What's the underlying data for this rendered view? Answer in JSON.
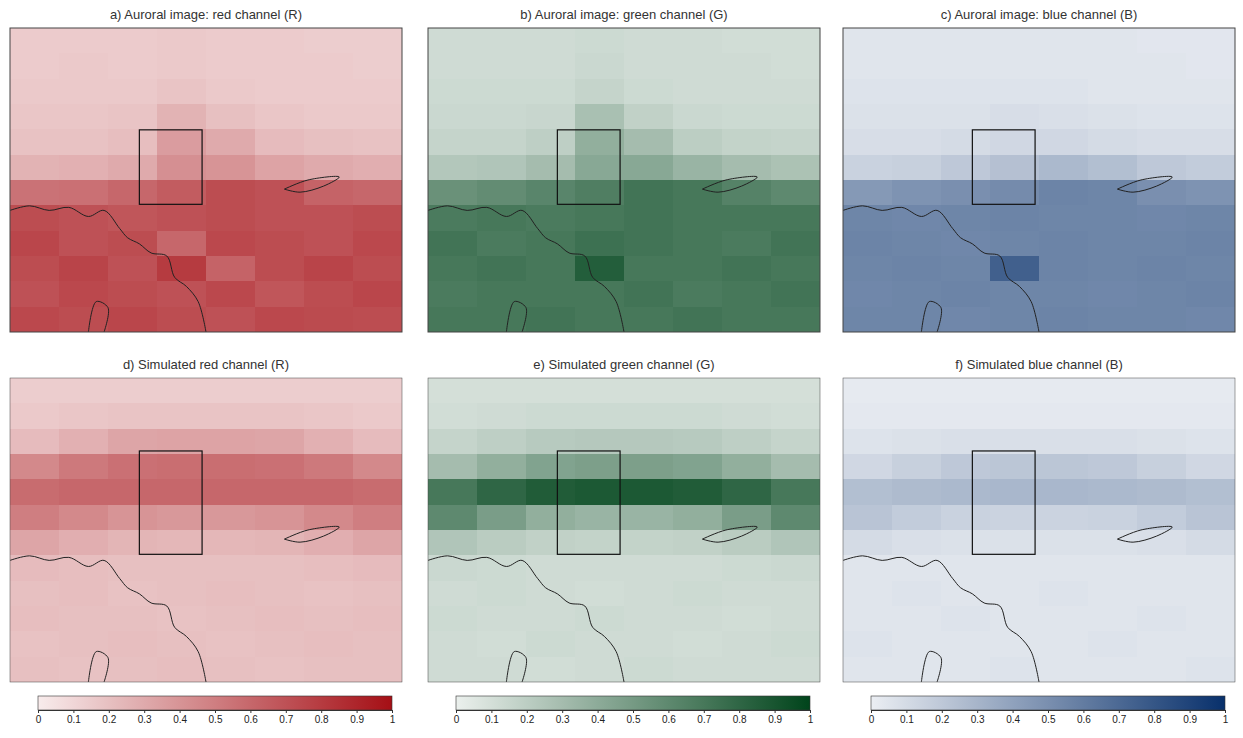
{
  "chart_data": [
    {
      "type": "heatmap",
      "title": "a) Auroral image: red channel (R)",
      "color": "#a50f15",
      "tick_labels": false,
      "zlim": [
        0,
        1
      ],
      "cells": [
        [
          0.15,
          0.15,
          0.15,
          0.16,
          0.15,
          0.15,
          0.14,
          0.14
        ],
        [
          0.15,
          0.16,
          0.15,
          0.16,
          0.15,
          0.15,
          0.15,
          0.14
        ],
        [
          0.16,
          0.16,
          0.16,
          0.18,
          0.16,
          0.15,
          0.15,
          0.15
        ],
        [
          0.17,
          0.17,
          0.18,
          0.26,
          0.2,
          0.17,
          0.16,
          0.16
        ],
        [
          0.19,
          0.19,
          0.21,
          0.36,
          0.3,
          0.22,
          0.2,
          0.19
        ],
        [
          0.26,
          0.27,
          0.3,
          0.42,
          0.4,
          0.33,
          0.3,
          0.28
        ],
        [
          0.55,
          0.56,
          0.6,
          0.65,
          0.72,
          0.7,
          0.62,
          0.6
        ],
        [
          0.72,
          0.7,
          0.68,
          0.7,
          0.72,
          0.7,
          0.7,
          0.72
        ],
        [
          0.75,
          0.7,
          0.72,
          0.6,
          0.74,
          0.72,
          0.7,
          0.74
        ],
        [
          0.72,
          0.76,
          0.7,
          0.8,
          0.62,
          0.72,
          0.76,
          0.72
        ],
        [
          0.7,
          0.74,
          0.72,
          0.7,
          0.74,
          0.68,
          0.72,
          0.75
        ],
        [
          0.74,
          0.72,
          0.75,
          0.72,
          0.7,
          0.74,
          0.73,
          0.72
        ]
      ]
    },
    {
      "type": "heatmap",
      "title": "b) Auroral image: green channel (G)",
      "color": "#00441b",
      "tick_labels": false,
      "zlim": [
        0,
        1
      ],
      "cells": [
        [
          0.12,
          0.12,
          0.12,
          0.13,
          0.12,
          0.12,
          0.11,
          0.11
        ],
        [
          0.12,
          0.12,
          0.12,
          0.14,
          0.12,
          0.12,
          0.12,
          0.11
        ],
        [
          0.13,
          0.13,
          0.13,
          0.16,
          0.13,
          0.12,
          0.12,
          0.12
        ],
        [
          0.14,
          0.14,
          0.15,
          0.28,
          0.18,
          0.14,
          0.13,
          0.13
        ],
        [
          0.16,
          0.16,
          0.19,
          0.38,
          0.3,
          0.2,
          0.17,
          0.16
        ],
        [
          0.24,
          0.25,
          0.3,
          0.42,
          0.42,
          0.35,
          0.3,
          0.27
        ],
        [
          0.55,
          0.58,
          0.62,
          0.66,
          0.72,
          0.7,
          0.64,
          0.6
        ],
        [
          0.68,
          0.7,
          0.68,
          0.7,
          0.72,
          0.7,
          0.7,
          0.7
        ],
        [
          0.72,
          0.68,
          0.7,
          0.74,
          0.72,
          0.7,
          0.68,
          0.72
        ],
        [
          0.7,
          0.72,
          0.7,
          0.85,
          0.7,
          0.7,
          0.72,
          0.7
        ],
        [
          0.68,
          0.7,
          0.7,
          0.7,
          0.72,
          0.68,
          0.7,
          0.72
        ],
        [
          0.7,
          0.7,
          0.72,
          0.7,
          0.7,
          0.72,
          0.7,
          0.7
        ]
      ]
    },
    {
      "type": "heatmap",
      "title": "c) Auroral image: blue channel (B)",
      "color": "#08306b",
      "tick_labels": false,
      "zlim": [
        0,
        1
      ],
      "cells": [
        [
          0.05,
          0.05,
          0.05,
          0.05,
          0.05,
          0.05,
          0.04,
          0.04
        ],
        [
          0.05,
          0.05,
          0.05,
          0.05,
          0.05,
          0.05,
          0.05,
          0.04
        ],
        [
          0.06,
          0.06,
          0.06,
          0.06,
          0.06,
          0.05,
          0.05,
          0.05
        ],
        [
          0.07,
          0.07,
          0.07,
          0.09,
          0.08,
          0.07,
          0.06,
          0.06
        ],
        [
          0.09,
          0.09,
          0.1,
          0.12,
          0.12,
          0.1,
          0.09,
          0.09
        ],
        [
          0.15,
          0.16,
          0.2,
          0.24,
          0.28,
          0.25,
          0.2,
          0.18
        ],
        [
          0.45,
          0.48,
          0.5,
          0.52,
          0.56,
          0.55,
          0.5,
          0.48
        ],
        [
          0.55,
          0.54,
          0.55,
          0.56,
          0.55,
          0.55,
          0.54,
          0.55
        ],
        [
          0.56,
          0.55,
          0.54,
          0.55,
          0.56,
          0.55,
          0.55,
          0.56
        ],
        [
          0.55,
          0.56,
          0.55,
          0.75,
          0.56,
          0.55,
          0.56,
          0.55
        ],
        [
          0.54,
          0.55,
          0.56,
          0.55,
          0.55,
          0.54,
          0.55,
          0.56
        ],
        [
          0.55,
          0.55,
          0.54,
          0.55,
          0.56,
          0.55,
          0.55,
          0.54
        ]
      ]
    },
    {
      "type": "heatmap",
      "title": "d) Simulated red channel (R)",
      "color": "#a50f15",
      "tick_labels": false,
      "zlim": [
        0,
        1
      ],
      "zticks": [
        0,
        0.1,
        0.2,
        0.3,
        0.4,
        0.5,
        0.6,
        0.7,
        0.8,
        0.9,
        1
      ],
      "cells": [
        [
          0.14,
          0.14,
          0.14,
          0.14,
          0.14,
          0.14,
          0.14,
          0.14
        ],
        [
          0.16,
          0.17,
          0.18,
          0.18,
          0.18,
          0.18,
          0.17,
          0.16
        ],
        [
          0.22,
          0.27,
          0.32,
          0.33,
          0.33,
          0.32,
          0.27,
          0.22
        ],
        [
          0.45,
          0.52,
          0.56,
          0.57,
          0.57,
          0.56,
          0.52,
          0.45
        ],
        [
          0.58,
          0.6,
          0.6,
          0.6,
          0.6,
          0.6,
          0.6,
          0.58
        ],
        [
          0.5,
          0.45,
          0.4,
          0.38,
          0.38,
          0.4,
          0.45,
          0.5
        ],
        [
          0.32,
          0.28,
          0.25,
          0.24,
          0.24,
          0.25,
          0.28,
          0.32
        ],
        [
          0.22,
          0.21,
          0.2,
          0.2,
          0.2,
          0.2,
          0.21,
          0.22
        ],
        [
          0.2,
          0.21,
          0.19,
          0.2,
          0.21,
          0.2,
          0.19,
          0.2
        ],
        [
          0.21,
          0.2,
          0.2,
          0.19,
          0.2,
          0.21,
          0.2,
          0.21
        ],
        [
          0.19,
          0.2,
          0.21,
          0.2,
          0.19,
          0.2,
          0.21,
          0.2
        ],
        [
          0.2,
          0.19,
          0.2,
          0.21,
          0.2,
          0.19,
          0.2,
          0.2
        ]
      ]
    },
    {
      "type": "heatmap",
      "title": "e) Simulated green channel (G)",
      "color": "#00441b",
      "tick_labels": false,
      "zlim": [
        0,
        1
      ],
      "zticks": [
        0,
        0.1,
        0.2,
        0.3,
        0.4,
        0.5,
        0.6,
        0.7,
        0.8,
        0.9,
        1
      ],
      "cells": [
        [
          0.1,
          0.1,
          0.1,
          0.1,
          0.1,
          0.1,
          0.1,
          0.1
        ],
        [
          0.11,
          0.12,
          0.13,
          0.13,
          0.13,
          0.13,
          0.12,
          0.11
        ],
        [
          0.16,
          0.19,
          0.22,
          0.23,
          0.23,
          0.22,
          0.19,
          0.16
        ],
        [
          0.3,
          0.38,
          0.45,
          0.47,
          0.47,
          0.45,
          0.38,
          0.3
        ],
        [
          0.7,
          0.8,
          0.86,
          0.88,
          0.88,
          0.86,
          0.8,
          0.7
        ],
        [
          0.6,
          0.48,
          0.38,
          0.35,
          0.35,
          0.38,
          0.48,
          0.6
        ],
        [
          0.25,
          0.21,
          0.18,
          0.17,
          0.17,
          0.18,
          0.21,
          0.25
        ],
        [
          0.14,
          0.13,
          0.12,
          0.12,
          0.12,
          0.12,
          0.13,
          0.14
        ],
        [
          0.12,
          0.13,
          0.12,
          0.11,
          0.12,
          0.13,
          0.12,
          0.12
        ],
        [
          0.13,
          0.12,
          0.12,
          0.13,
          0.12,
          0.12,
          0.11,
          0.12
        ],
        [
          0.12,
          0.11,
          0.13,
          0.12,
          0.12,
          0.11,
          0.12,
          0.13
        ],
        [
          0.12,
          0.12,
          0.11,
          0.12,
          0.13,
          0.12,
          0.12,
          0.12
        ]
      ]
    },
    {
      "type": "heatmap",
      "title": "f) Simulated blue channel (B)",
      "color": "#08306b",
      "tick_labels": false,
      "zlim": [
        0,
        1
      ],
      "zticks": [
        0,
        0.1,
        0.2,
        0.3,
        0.4,
        0.5,
        0.6,
        0.7,
        0.8,
        0.9,
        1
      ],
      "cells": [
        [
          0.02,
          0.02,
          0.02,
          0.02,
          0.02,
          0.02,
          0.02,
          0.02
        ],
        [
          0.03,
          0.03,
          0.03,
          0.03,
          0.03,
          0.03,
          0.03,
          0.03
        ],
        [
          0.06,
          0.07,
          0.08,
          0.08,
          0.08,
          0.08,
          0.07,
          0.06
        ],
        [
          0.12,
          0.16,
          0.2,
          0.21,
          0.21,
          0.2,
          0.16,
          0.12
        ],
        [
          0.25,
          0.27,
          0.28,
          0.29,
          0.29,
          0.28,
          0.27,
          0.25
        ],
        [
          0.22,
          0.18,
          0.15,
          0.14,
          0.14,
          0.15,
          0.18,
          0.22
        ],
        [
          0.1,
          0.08,
          0.07,
          0.07,
          0.07,
          0.07,
          0.08,
          0.1
        ],
        [
          0.05,
          0.05,
          0.05,
          0.05,
          0.05,
          0.05,
          0.05,
          0.05
        ],
        [
          0.05,
          0.06,
          0.05,
          0.05,
          0.06,
          0.05,
          0.05,
          0.05
        ],
        [
          0.05,
          0.05,
          0.06,
          0.05,
          0.05,
          0.05,
          0.06,
          0.05
        ],
        [
          0.06,
          0.05,
          0.05,
          0.05,
          0.05,
          0.06,
          0.05,
          0.05
        ],
        [
          0.05,
          0.05,
          0.05,
          0.06,
          0.05,
          0.05,
          0.05,
          0.06
        ]
      ]
    }
  ]
}
